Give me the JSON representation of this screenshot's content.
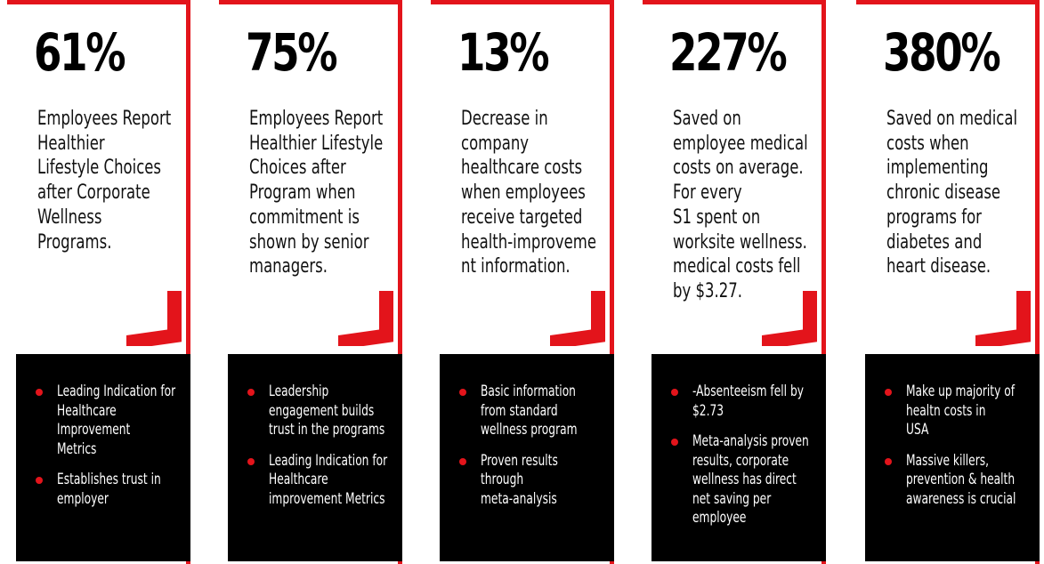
{
  "accent_color": "#e3141b",
  "cards": [
    {
      "stat": "61%",
      "description": "Employees Report\nHealthier\nLifestyle Choices\nafter Corporate\nWellness\nPrograms.",
      "bullets": [
        "Leading Indication for\nHealthcare\nImprovement\nMetrics",
        "Establishes trust in\nemployer"
      ]
    },
    {
      "stat": "75%",
      "description": "Employees Report\nHealthier Lifestyle\nChoices after\nProgram when\ncommitment is\nshown by senior\nmanagers.",
      "bullets": [
        "Leadership\nengagement builds\ntrust in the programs",
        "Leading Indication for\nHealthcare\nimprovement Metrics"
      ]
    },
    {
      "stat": "13%",
      "description": "Decrease in\ncompany\nhealthcare costs\nwhen employees\nreceive targeted\nhealth-improveme\nnt information.",
      "bullets": [
        "Basic information\nfrom standard\nwellness program",
        "Proven results\nthrough\nmeta-analysis"
      ]
    },
    {
      "stat": "227%",
      "description": "Saved on\nemployee medical\ncosts on average.\nFor every\nS1 spent on\nworksite wellness.\nmedical costs fell\nby $3.27.",
      "bullets": [
        "-Absenteeism fell by\n$2.73",
        "Meta-analysis proven\nresults, corporate\nwellness has direct\nnet saving per\nemployee"
      ]
    },
    {
      "stat": "380%",
      "description": "Saved on medical\ncosts when\nimplementing\nchronic disease\nprograms for\ndiabetes and\nheart disease.",
      "bullets": [
        "Make up majority of\nhealtn costs in\nUSA",
        "Massive killers,\nprevention & health\nawareness is crucial"
      ]
    }
  ]
}
